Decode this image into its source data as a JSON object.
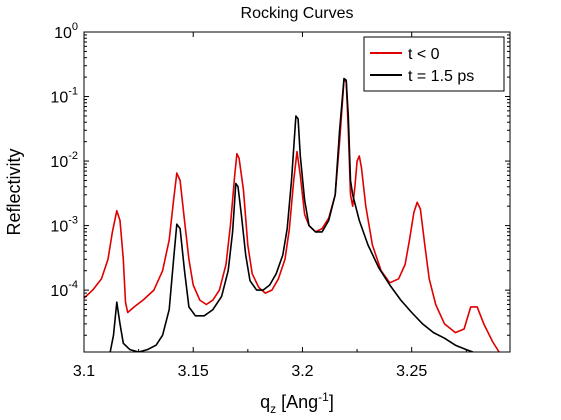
{
  "chart_data": {
    "type": "line",
    "title": "Rocking Curves",
    "xlabel": "q_z [Ang^-1]",
    "ylabel": "Reflectivity",
    "xlim": [
      3.1,
      3.295
    ],
    "ylim": [
      1.1e-05,
      1
    ],
    "yscale": "log",
    "grid": false,
    "legend_position": "top-right",
    "x_ticks": [
      3.1,
      3.15,
      3.2,
      3.25
    ],
    "x_tick_labels": [
      "3.1",
      "3.15",
      "3.2",
      "3.25"
    ],
    "y_tick_exponents": [
      0,
      -1,
      -2,
      -3,
      -4
    ],
    "series": [
      {
        "name": "t < 0",
        "color": "#e00000",
        "points": [
          [
            3.1,
            7.5e-05
          ],
          [
            3.104,
            0.0001
          ],
          [
            3.108,
            0.00015
          ],
          [
            3.111,
            0.0003
          ],
          [
            3.113,
            0.0008
          ],
          [
            3.115,
            0.0017
          ],
          [
            3.1165,
            0.0012
          ],
          [
            3.118,
            0.0003
          ],
          [
            3.119,
            6.5e-05
          ],
          [
            3.12,
            4.5e-05
          ],
          [
            3.123,
            5.5e-05
          ],
          [
            3.127,
            7e-05
          ],
          [
            3.132,
            0.0001
          ],
          [
            3.136,
            0.0002
          ],
          [
            3.139,
            0.0006
          ],
          [
            3.141,
            0.0025
          ],
          [
            3.1425,
            0.0065
          ],
          [
            3.144,
            0.005
          ],
          [
            3.146,
            0.0012
          ],
          [
            3.148,
            0.0003
          ],
          [
            3.15,
            0.00012
          ],
          [
            3.153,
            7e-05
          ],
          [
            3.156,
            6e-05
          ],
          [
            3.159,
            7e-05
          ],
          [
            3.162,
            0.0001
          ],
          [
            3.165,
            0.00025
          ],
          [
            3.167,
            0.001
          ],
          [
            3.169,
            0.006
          ],
          [
            3.17,
            0.013
          ],
          [
            3.171,
            0.011
          ],
          [
            3.173,
            0.0035
          ],
          [
            3.175,
            0.0005
          ],
          [
            3.177,
            0.00018
          ],
          [
            3.18,
            0.00011
          ],
          [
            3.183,
            9e-05
          ],
          [
            3.186,
            0.0001
          ],
          [
            3.189,
            0.00015
          ],
          [
            3.192,
            0.0003
          ],
          [
            3.194,
            0.0009
          ],
          [
            3.196,
            0.005
          ],
          [
            3.1975,
            0.014
          ],
          [
            3.199,
            0.006
          ],
          [
            3.201,
            0.0015
          ],
          [
            3.203,
            0.001
          ],
          [
            3.206,
            0.0008
          ],
          [
            3.209,
            0.0009
          ],
          [
            3.212,
            0.0013
          ],
          [
            3.215,
            0.003
          ],
          [
            3.217,
            0.02
          ],
          [
            3.219,
            0.18
          ],
          [
            3.22,
            0.17
          ],
          [
            3.221,
            0.03
          ],
          [
            3.222,
            0.003
          ],
          [
            3.223,
            0.002
          ],
          [
            3.224,
            0.004
          ],
          [
            3.225,
            0.01
          ],
          [
            3.226,
            0.012
          ],
          [
            3.227,
            0.008
          ],
          [
            3.229,
            0.002
          ],
          [
            3.232,
            0.0005
          ],
          [
            3.236,
            0.0002
          ],
          [
            3.24,
            0.00013
          ],
          [
            3.244,
            0.00015
          ],
          [
            3.247,
            0.00025
          ],
          [
            3.249,
            0.0006
          ],
          [
            3.251,
            0.0016
          ],
          [
            3.2525,
            0.0023
          ],
          [
            3.254,
            0.0018
          ],
          [
            3.256,
            0.0005
          ],
          [
            3.258,
            0.00015
          ],
          [
            3.261,
            6e-05
          ],
          [
            3.265,
            3e-05
          ],
          [
            3.27,
            2.2e-05
          ],
          [
            3.274,
            2.5e-05
          ],
          [
            3.277,
            5.5e-05
          ],
          [
            3.28,
            5.5e-05
          ],
          [
            3.283,
            3e-05
          ],
          [
            3.287,
            1.6e-05
          ],
          [
            3.29,
            1.1e-05
          ]
        ]
      },
      {
        "name": "t = 1.5 ps",
        "color": "#000000",
        "points": [
          [
            3.112,
            1.1e-05
          ],
          [
            3.1135,
            2e-05
          ],
          [
            3.115,
            6.5e-05
          ],
          [
            3.1165,
            3e-05
          ],
          [
            3.118,
            1.5e-05
          ],
          [
            3.121,
            1.2e-05
          ],
          [
            3.125,
            1.1e-05
          ],
          [
            3.129,
            1.2e-05
          ],
          [
            3.133,
            1.4e-05
          ],
          [
            3.136,
            2e-05
          ],
          [
            3.139,
            5e-05
          ],
          [
            3.141,
            0.0003
          ],
          [
            3.1425,
            0.00105
          ],
          [
            3.144,
            0.0009
          ],
          [
            3.146,
            0.0002
          ],
          [
            3.148,
            5.5e-05
          ],
          [
            3.151,
            4e-05
          ],
          [
            3.155,
            4e-05
          ],
          [
            3.159,
            5e-05
          ],
          [
            3.163,
            8e-05
          ],
          [
            3.166,
            0.0002
          ],
          [
            3.168,
            0.0008
          ],
          [
            3.1695,
            0.0045
          ],
          [
            3.1705,
            0.004
          ],
          [
            3.172,
            0.0015
          ],
          [
            3.174,
            0.00035
          ],
          [
            3.176,
            0.00014
          ],
          [
            3.179,
            0.0001
          ],
          [
            3.182,
            0.0001
          ],
          [
            3.185,
            0.00012
          ],
          [
            3.188,
            0.00018
          ],
          [
            3.191,
            0.00035
          ],
          [
            3.193,
            0.0009
          ],
          [
            3.195,
            0.005
          ],
          [
            3.197,
            0.05
          ],
          [
            3.198,
            0.045
          ],
          [
            3.199,
            0.012
          ],
          [
            3.201,
            0.0025
          ],
          [
            3.203,
            0.001
          ],
          [
            3.206,
            0.0008
          ],
          [
            3.209,
            0.0008
          ],
          [
            3.212,
            0.0012
          ],
          [
            3.215,
            0.003
          ],
          [
            3.217,
            0.03
          ],
          [
            3.219,
            0.19
          ],
          [
            3.22,
            0.18
          ],
          [
            3.221,
            0.05
          ],
          [
            3.222,
            0.005
          ],
          [
            3.223,
            0.003
          ],
          [
            3.226,
            0.0012
          ],
          [
            3.23,
            0.0005
          ],
          [
            3.235,
            0.00022
          ],
          [
            3.24,
            0.00012
          ],
          [
            3.245,
            7e-05
          ],
          [
            3.25,
            4.5e-05
          ],
          [
            3.255,
            3e-05
          ],
          [
            3.26,
            2.2e-05
          ],
          [
            3.265,
            1.8e-05
          ],
          [
            3.27,
            1.4e-05
          ],
          [
            3.275,
            1.2e-05
          ],
          [
            3.278,
            1.1e-05
          ]
        ]
      }
    ]
  }
}
